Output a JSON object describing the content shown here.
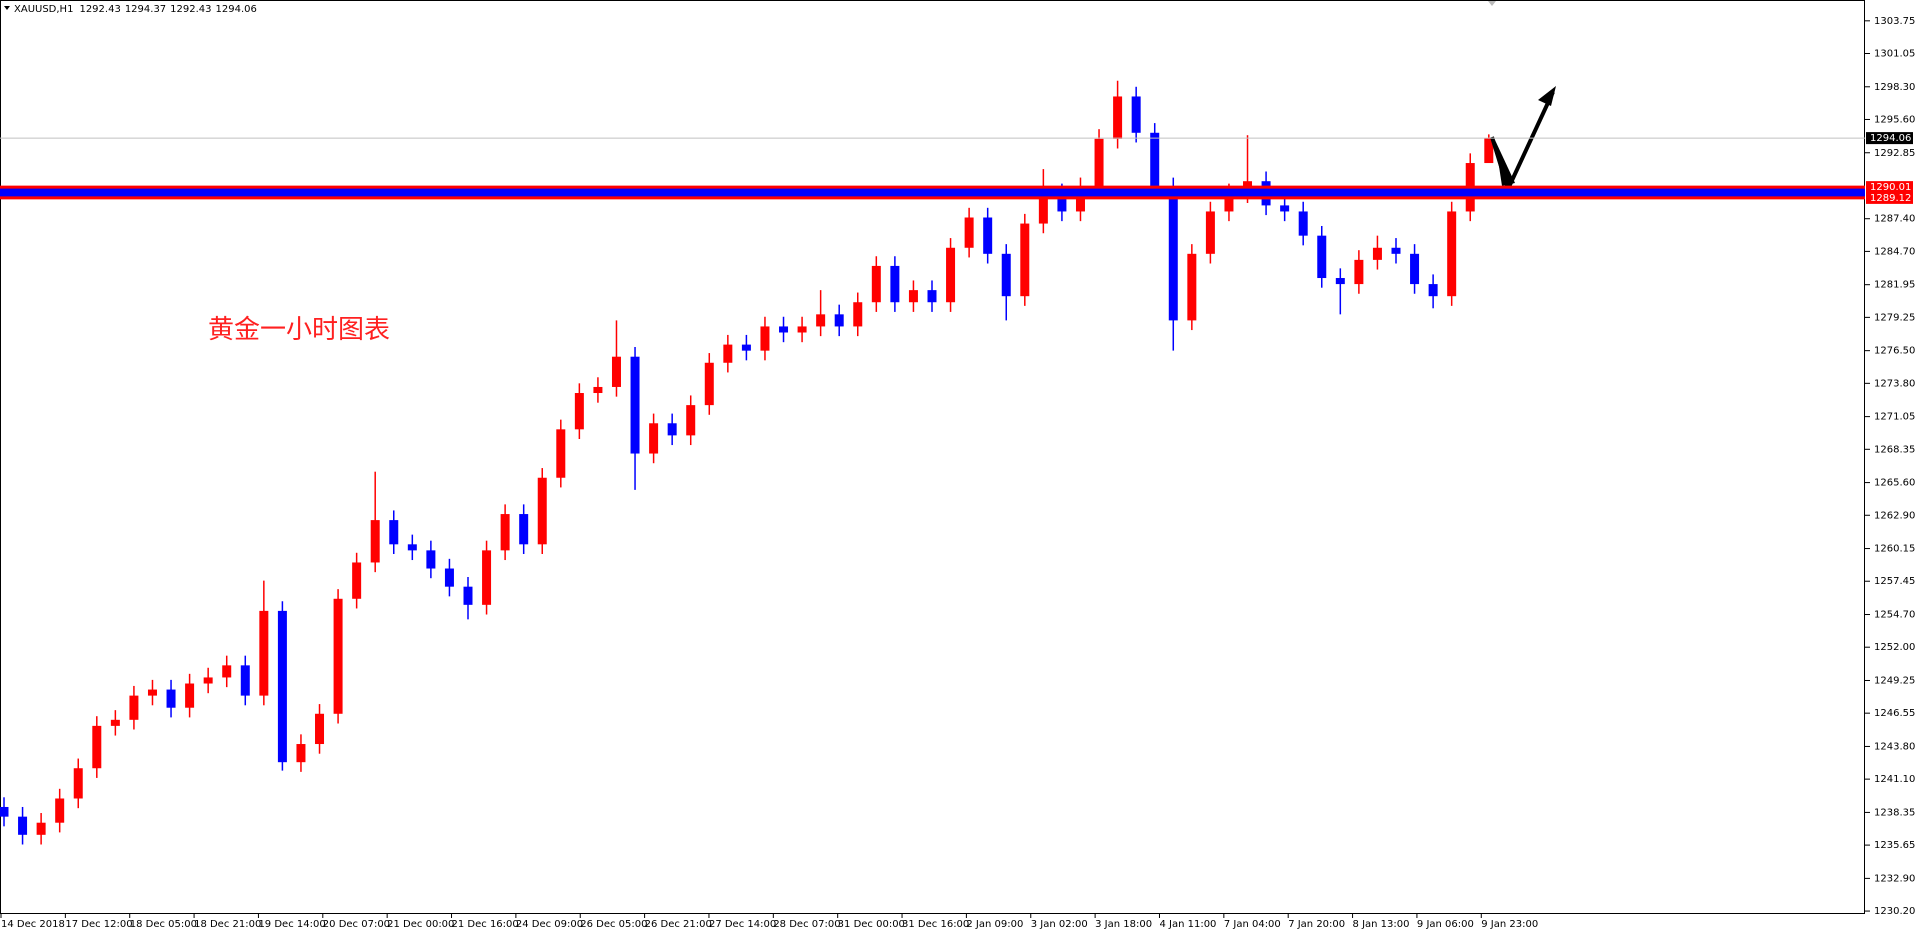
{
  "header": {
    "symbol": "XAUUSD,H1",
    "ohlc": [
      1292.43,
      1294.37,
      1292.43,
      1294.06
    ]
  },
  "chart_data": {
    "type": "candlestick",
    "annotation": "黄金一小时图表",
    "open": [
      1238.8,
      1238.0,
      1236.5,
      1237.5,
      1239.5,
      1242.0,
      1245.5,
      1246.0,
      1248.0,
      1248.5,
      1247.0,
      1249.0,
      1249.5,
      1250.5,
      1248.0,
      1255.0,
      1242.5,
      1244.0,
      1246.5,
      1256.0,
      1259.0,
      1262.5,
      1260.5,
      1260.0,
      1258.5,
      1257.0,
      1255.5,
      1260.0,
      1263.0,
      1260.5,
      1266.0,
      1270.0,
      1273.0,
      1273.5,
      1276.0,
      1268.0,
      1270.5,
      1269.5,
      1272.0,
      1275.5,
      1277.0,
      1276.5,
      1278.5,
      1278.0,
      1278.5,
      1279.5,
      1278.5,
      1280.5,
      1283.5,
      1280.5,
      1281.5,
      1280.5,
      1285.0,
      1287.5,
      1284.5,
      1281.0,
      1287.0,
      1289.5,
      1288.0,
      1290.0,
      1294.0,
      1297.5,
      1294.5,
      1290.0,
      1279.0,
      1284.5,
      1288.0,
      1289.5,
      1290.5,
      1288.5,
      1288.0,
      1286.0,
      1282.5,
      1282.0,
      1284.0,
      1285.0,
      1284.5,
      1282.0,
      1281.0,
      1288.0,
      1292.0
    ],
    "high": [
      1239.6,
      1238.8,
      1238.3,
      1240.3,
      1242.8,
      1246.3,
      1246.8,
      1248.8,
      1249.3,
      1249.3,
      1249.8,
      1250.3,
      1251.3,
      1251.3,
      1257.5,
      1255.8,
      1244.8,
      1247.3,
      1256.8,
      1259.8,
      1266.5,
      1263.3,
      1261.3,
      1260.8,
      1259.3,
      1257.8,
      1260.8,
      1263.8,
      1263.8,
      1266.8,
      1270.8,
      1273.8,
      1274.3,
      1279.0,
      1276.8,
      1271.3,
      1271.3,
      1272.8,
      1276.3,
      1277.8,
      1277.8,
      1279.3,
      1279.3,
      1279.3,
      1281.5,
      1280.3,
      1281.3,
      1284.3,
      1284.3,
      1282.3,
      1282.3,
      1285.8,
      1288.3,
      1288.3,
      1285.3,
      1287.8,
      1291.5,
      1290.3,
      1290.8,
      1294.8,
      1298.8,
      1298.3,
      1295.3,
      1290.8,
      1285.3,
      1288.8,
      1290.3,
      1294.3,
      1291.3,
      1289.3,
      1288.8,
      1286.8,
      1283.3,
      1284.8,
      1286.0,
      1285.8,
      1285.3,
      1282.8,
      1288.8,
      1292.8,
      1294.37
    ],
    "low": [
      1237.2,
      1235.7,
      1235.7,
      1236.7,
      1238.7,
      1241.2,
      1244.7,
      1245.2,
      1247.2,
      1246.2,
      1246.2,
      1248.2,
      1248.7,
      1247.2,
      1247.2,
      1241.8,
      1241.7,
      1243.2,
      1245.7,
      1255.2,
      1258.2,
      1259.7,
      1259.2,
      1257.7,
      1256.2,
      1254.3,
      1254.7,
      1259.2,
      1259.7,
      1259.7,
      1265.2,
      1269.2,
      1272.2,
      1272.7,
      1265.0,
      1267.2,
      1268.7,
      1268.7,
      1271.2,
      1274.7,
      1275.7,
      1275.7,
      1277.2,
      1277.2,
      1277.7,
      1277.7,
      1277.7,
      1279.7,
      1279.7,
      1279.7,
      1279.7,
      1279.7,
      1284.2,
      1283.7,
      1279.0,
      1280.2,
      1286.2,
      1287.2,
      1287.2,
      1289.2,
      1293.2,
      1293.7,
      1289.2,
      1276.5,
      1278.2,
      1283.7,
      1287.2,
      1288.7,
      1287.7,
      1287.2,
      1285.2,
      1281.7,
      1279.5,
      1281.2,
      1283.2,
      1283.7,
      1281.2,
      1280.0,
      1280.2,
      1287.2,
      1292.43
    ],
    "close": [
      1238.0,
      1236.5,
      1237.5,
      1239.5,
      1242.0,
      1245.5,
      1246.0,
      1248.0,
      1248.5,
      1247.0,
      1249.0,
      1249.5,
      1250.5,
      1248.0,
      1255.0,
      1242.5,
      1244.0,
      1246.5,
      1256.0,
      1259.0,
      1262.5,
      1260.5,
      1260.0,
      1258.5,
      1257.0,
      1255.5,
      1260.0,
      1263.0,
      1260.5,
      1266.0,
      1270.0,
      1273.0,
      1273.5,
      1276.0,
      1268.0,
      1270.5,
      1269.5,
      1272.0,
      1275.5,
      1277.0,
      1276.5,
      1278.5,
      1278.0,
      1278.5,
      1279.5,
      1278.5,
      1280.5,
      1283.5,
      1280.5,
      1281.5,
      1280.5,
      1285.0,
      1287.5,
      1284.5,
      1281.0,
      1287.0,
      1289.5,
      1288.0,
      1290.0,
      1294.0,
      1297.5,
      1294.5,
      1290.0,
      1279.0,
      1284.5,
      1288.0,
      1289.5,
      1290.5,
      1288.5,
      1288.0,
      1286.0,
      1282.5,
      1282.0,
      1284.0,
      1285.0,
      1284.5,
      1282.0,
      1281.0,
      1288.0,
      1292.0,
      1294.06
    ],
    "up_color": "#ff0000",
    "down_color": "#0000ff",
    "ylim": [
      1230.04,
      1305.47
    ],
    "yticks": [
      1303.75,
      1301.05,
      {
        "value": 1298.3,
        "label": "1298.30"
      },
      {
        "value": 1295.6,
        "label": "1295.60"
      },
      1292.85,
      {
        "value": 1287.4,
        "label": "1287.40"
      },
      {
        "value": 1284.7,
        "label": "1284.70"
      },
      1281.95,
      1279.25,
      {
        "value": 1276.5,
        "label": "1276.50"
      },
      {
        "value": 1273.8,
        "label": "1273.80"
      },
      1271.05,
      1268.35,
      {
        "value": 1265.6,
        "label": "1265.60"
      },
      {
        "value": 1262.9,
        "label": "1262.90"
      },
      1260.15,
      1257.45,
      {
        "value": 1254.7,
        "label": "1254.70"
      },
      {
        "value": 1252,
        "label": "1252.00"
      },
      1249.25,
      1246.55,
      {
        "value": 1243.8,
        "label": "1243.80"
      },
      {
        "value": 1241.1,
        "label": "1241.10"
      },
      1238.35,
      1235.65,
      {
        "value": 1232.9,
        "label": "1232.90"
      },
      {
        "value": 1230.2,
        "label": "1230.20"
      }
    ],
    "time_labels": [
      "14 Dec 2018",
      "17 Dec 12:00",
      "18 Dec 05:00",
      "18 Dec 21:00",
      "19 Dec 14:00",
      "20 Dec 07:00",
      "21 Dec 00:00",
      "21 Dec 16:00",
      "24 Dec 09:00",
      "26 Dec 05:00",
      "26 Dec 21:00",
      "27 Dec 14:00",
      "28 Dec 07:00",
      "31 Dec 00:00",
      "31 Dec 16:00",
      "2 Jan 09:00",
      "3 Jan 02:00",
      "3 Jan 18:00",
      "4 Jan 11:00",
      "7 Jan 04:00",
      "7 Jan 20:00",
      "8 Jan 13:00",
      "9 Jan 06:00",
      "9 Jan 23:00"
    ],
    "bid": 1294.06,
    "bid_color": "#000000",
    "levels": [
      1290.01,
      1289.12
    ],
    "level_color": "#ff0000",
    "band_color": "#0000ff"
  }
}
